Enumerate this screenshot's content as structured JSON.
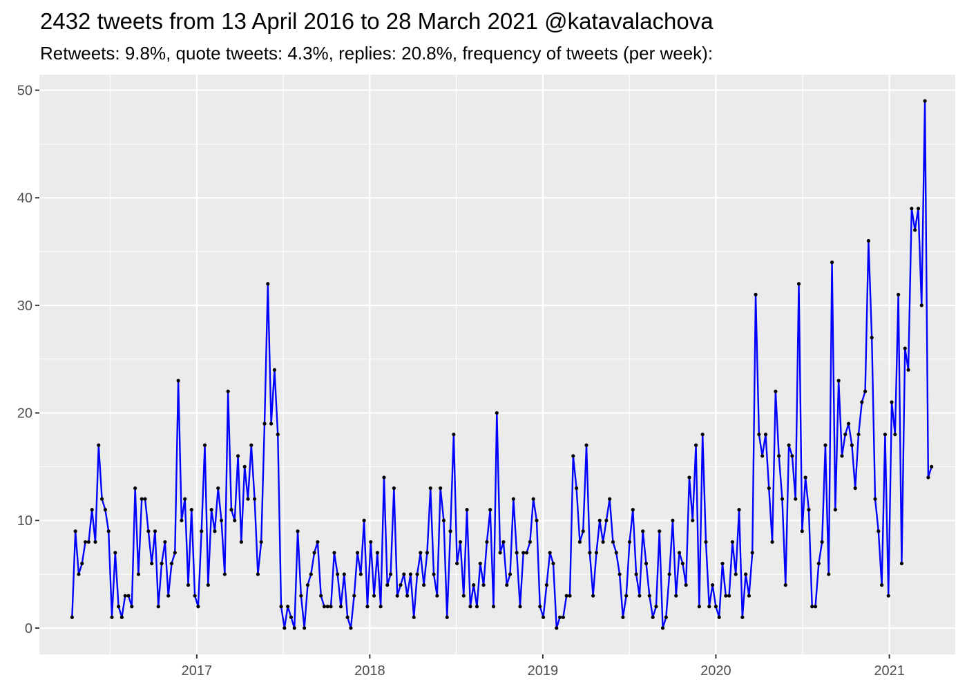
{
  "chart_data": {
    "type": "line",
    "title": "2432 tweets from 13 April 2016 to 28 March 2021 @katavalachova",
    "subtitle": "Retweets: 9.8%, quote tweets: 4.3%, replies: 20.8%, frequency of tweets (per week):",
    "xlabel": "",
    "ylabel": "",
    "x_start": "2016-04-13",
    "x_step": "1 week",
    "xlim": [
      "2016-02-04",
      "2021-05-20"
    ],
    "ylim": [
      -2.45,
      51.45
    ],
    "x_ticks": [
      "2017",
      "2018",
      "2019",
      "2020",
      "2021"
    ],
    "y_ticks": [
      0,
      10,
      20,
      30,
      40,
      50
    ],
    "grid": true,
    "series": [
      {
        "color": "#0000ff",
        "point_color": "#000000",
        "values": [
          1,
          9,
          5,
          6,
          8,
          8,
          11,
          8,
          17,
          12,
          11,
          9,
          1,
          7,
          2,
          1,
          3,
          3,
          2,
          13,
          5,
          12,
          12,
          9,
          6,
          9,
          2,
          6,
          8,
          3,
          6,
          7,
          23,
          10,
          12,
          4,
          11,
          3,
          2,
          9,
          17,
          4,
          11,
          9,
          13,
          10,
          5,
          22,
          11,
          10,
          16,
          8,
          15,
          12,
          17,
          12,
          5,
          8,
          19,
          32,
          19,
          24,
          18,
          2,
          0,
          2,
          1,
          0,
          9,
          3,
          0,
          4,
          5,
          7,
          8,
          3,
          2,
          2,
          2,
          7,
          5,
          2,
          5,
          1,
          0,
          3,
          7,
          5,
          10,
          2,
          8,
          3,
          7,
          2,
          14,
          4,
          5,
          13,
          3,
          4,
          5,
          3,
          5,
          1,
          5,
          7,
          4,
          7,
          13,
          5,
          3,
          13,
          10,
          1,
          9,
          18,
          6,
          8,
          3,
          11,
          2,
          4,
          2,
          6,
          4,
          8,
          11,
          2,
          20,
          7,
          8,
          4,
          5,
          12,
          7,
          2,
          7,
          7,
          8,
          12,
          10,
          2,
          1,
          4,
          7,
          6,
          0,
          1,
          1,
          3,
          3,
          16,
          13,
          8,
          9,
          17,
          7,
          3,
          7,
          10,
          8,
          10,
          12,
          8,
          7,
          5,
          1,
          3,
          8,
          11,
          5,
          3,
          9,
          6,
          3,
          1,
          2,
          9,
          0,
          1,
          5,
          10,
          3,
          7,
          6,
          4,
          14,
          10,
          17,
          2,
          18,
          8,
          2,
          4,
          2,
          1,
          6,
          3,
          3,
          8,
          5,
          11,
          1,
          5,
          3,
          7,
          31,
          18,
          16,
          18,
          13,
          8,
          22,
          16,
          12,
          4,
          17,
          16,
          12,
          32,
          9,
          14,
          11,
          2,
          2,
          6,
          8,
          17,
          5,
          34,
          11,
          23,
          16,
          18,
          19,
          17,
          13,
          18,
          21,
          22,
          36,
          27,
          12,
          9,
          4,
          18,
          3,
          21,
          18,
          31,
          6,
          26,
          24,
          39,
          37,
          39,
          30,
          49,
          14,
          15
        ]
      }
    ]
  }
}
